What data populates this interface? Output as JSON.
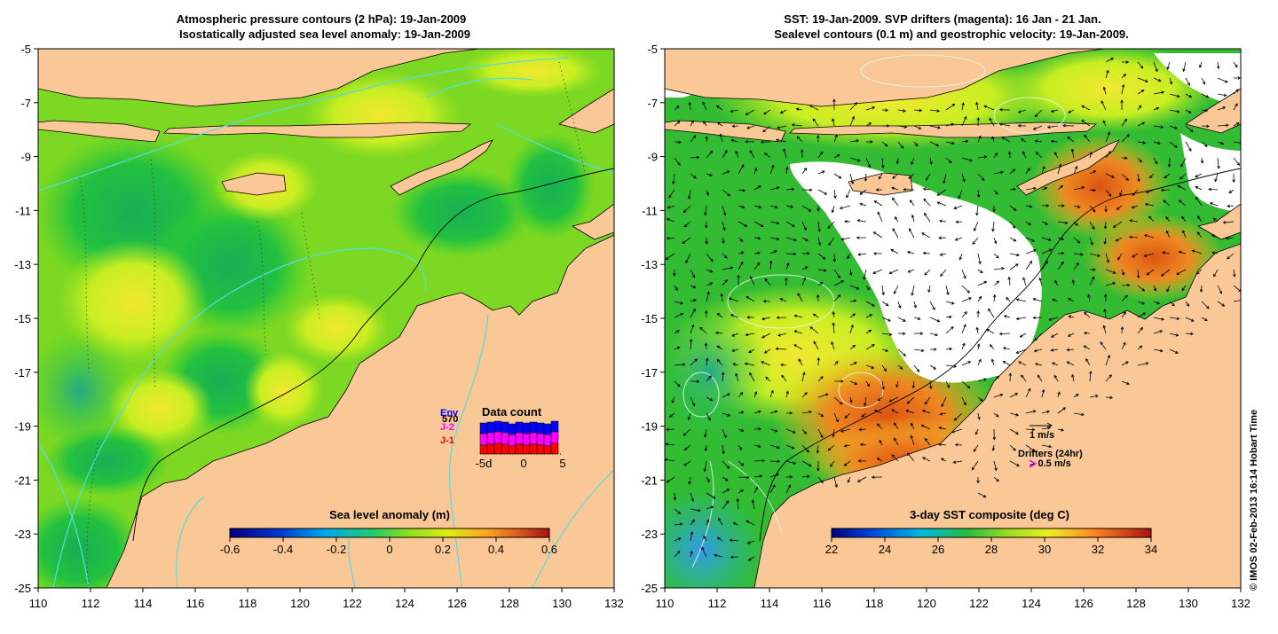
{
  "left_panel": {
    "title_line1": "Atmospheric pressure contours (2 hPa): 19-Jan-2009",
    "title_line2": "Isostatically adjusted sea level anomaly: 19-Jan-2009",
    "x_ticks": [
      "110",
      "112",
      "114",
      "116",
      "118",
      "120",
      "122",
      "124",
      "126",
      "128",
      "130",
      "132"
    ],
    "y_ticks": [
      "-5",
      "-7",
      "-9",
      "-11",
      "-13",
      "-15",
      "-17",
      "-19",
      "-21",
      "-23",
      "-25"
    ],
    "colorbar": {
      "label": "Sea level anomaly (m)",
      "ticks": [
        "-0.6",
        "-0.4",
        "-0.2",
        "0",
        "0.2",
        "0.4",
        "0.6"
      ],
      "min": -0.6,
      "max": 0.6
    },
    "data_count": {
      "title": "Data count",
      "legend": [
        {
          "label": "Env",
          "color": "#0000ff"
        },
        {
          "label": "J-2",
          "color": "#ff00ff"
        },
        {
          "label": "J-1",
          "color": "#ff0000"
        }
      ],
      "env_value": "570",
      "axis_labels": [
        "-5d",
        "0",
        "5"
      ]
    }
  },
  "right_panel": {
    "title_line1": "SST: 19-Jan-2009. SVP drifters (magenta): 16 Jan - 21 Jan.",
    "title_line2": "Sealevel contours (0.1 m) and geostrophic velocity: 19-Jan-2009.",
    "x_ticks": [
      "110",
      "112",
      "114",
      "116",
      "118",
      "120",
      "122",
      "124",
      "126",
      "128",
      "130",
      "132"
    ],
    "y_ticks": [
      "-5",
      "-7",
      "-9",
      "-11",
      "-13",
      "-15",
      "-17",
      "-19",
      "-21",
      "-23",
      "-25"
    ],
    "colorbar": {
      "label": "3-day SST composite (deg C)",
      "ticks": [
        "22",
        "24",
        "26",
        "28",
        "30",
        "32",
        "34"
      ],
      "min": 22,
      "max": 34
    },
    "velocity_scale": "1 m/s",
    "drifters_label": "Drifters (24hr)",
    "drifters_speed": "> 0.5 m/s"
  },
  "credit": "© IMOS 02-Feb-2013 16:14 Hobart Time",
  "colors": {
    "land": "#f9c896",
    "ocean_green": "#33cc33",
    "ocean_yellow": "#ccee22",
    "sst_orange": "#ee8822",
    "contour_cyan": "#55dddd"
  }
}
